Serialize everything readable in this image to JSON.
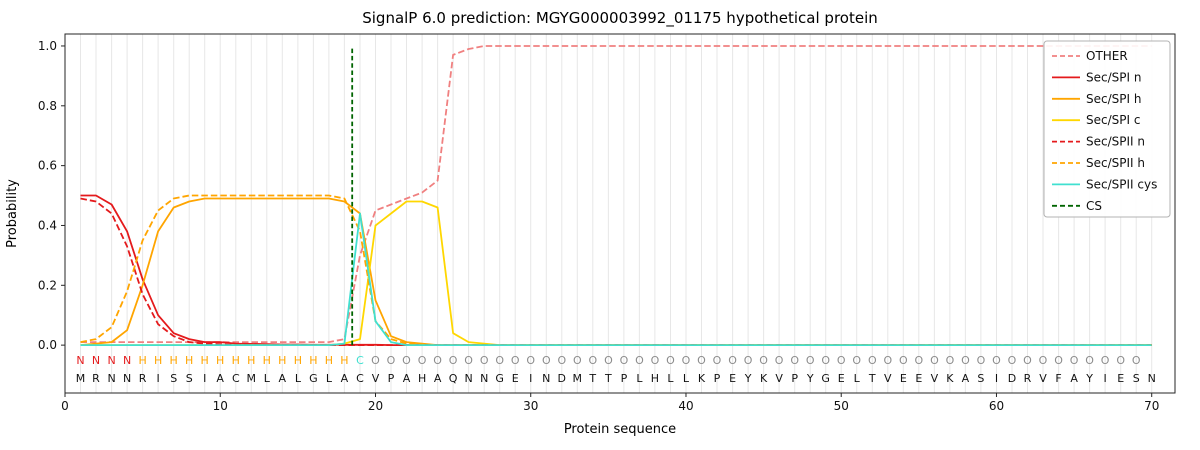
{
  "title": "SignalP 6.0 prediction: MGYG000003992_01175 hypothetical protein",
  "chart_data": {
    "type": "line",
    "title": "SignalP 6.0 prediction: MGYG000003992_01175 hypothetical protein",
    "xlabel": "Protein sequence",
    "ylabel": "Probability",
    "xlim": [
      0,
      71.5
    ],
    "ylim": [
      -0.16,
      1.04
    ],
    "xticks": [
      0,
      10,
      20,
      30,
      40,
      50,
      60,
      70
    ],
    "yticks": [
      0.0,
      0.2,
      0.4,
      0.6,
      0.8,
      1.0
    ],
    "grid": {
      "vertical_per_residue": true,
      "color": "#e7e7e7"
    },
    "legend_position": "upper right",
    "cleavage_site": {
      "label": "CS",
      "x": 18.5,
      "color": "#006400",
      "dash": true
    },
    "sequence": "MRNNRISSIACMLALGLACVPAHAQNNGEINDMTTPLHLLKPEYKVPYGELTVEEVKASIDRVFAYIESN",
    "annotation": "NNNNHHHHHHHHHHHHHHCOOOOOOOOOOOOOOOOOOOOOOOOOOOOOOOOOOOOOOOOOOOOOOOOOO",
    "annotation_colors": {
      "N": "#e41a1c",
      "H": "#ffa500",
      "C": "#40e0d0",
      "O": "#8c8c8c"
    },
    "sequence_color": "#111111",
    "series": [
      {
        "name": "OTHER",
        "color": "#f08080",
        "dash": true,
        "values": [
          0.01,
          0.01,
          0.01,
          0.01,
          0.01,
          0.01,
          0.01,
          0.01,
          0.01,
          0.01,
          0.01,
          0.01,
          0.01,
          0.01,
          0.01,
          0.01,
          0.01,
          0.02,
          0.3,
          0.45,
          0.47,
          0.49,
          0.51,
          0.55,
          0.97,
          0.99,
          1,
          1,
          1,
          1,
          1,
          1,
          1,
          1,
          1,
          1,
          1,
          1,
          1,
          1,
          1,
          1,
          1,
          1,
          1,
          1,
          1,
          1,
          1,
          1,
          1,
          1,
          1,
          1,
          1,
          1,
          1,
          1,
          1,
          1,
          1,
          1,
          1,
          1,
          1,
          1,
          1,
          1,
          1,
          1
        ]
      },
      {
        "name": "Sec/SPI n",
        "color": "#e41a1c",
        "dash": false,
        "values": [
          0.5,
          0.5,
          0.47,
          0.38,
          0.22,
          0.1,
          0.04,
          0.02,
          0.01,
          0.01,
          0.005,
          0.004,
          0.003,
          0.002,
          0.002,
          0.001,
          0.001,
          0.001,
          0.001,
          0.001,
          0,
          0,
          0,
          0,
          0,
          0,
          0,
          0,
          0,
          0,
          0,
          0,
          0,
          0,
          0,
          0,
          0,
          0,
          0,
          0,
          0,
          0,
          0,
          0,
          0,
          0,
          0,
          0,
          0,
          0,
          0,
          0,
          0,
          0,
          0,
          0,
          0,
          0,
          0,
          0,
          0,
          0,
          0,
          0,
          0,
          0,
          0,
          0,
          0,
          0
        ]
      },
      {
        "name": "Sec/SPI h",
        "color": "#ffa500",
        "dash": false,
        "values": [
          0,
          0.005,
          0.01,
          0.05,
          0.2,
          0.38,
          0.46,
          0.48,
          0.49,
          0.49,
          0.49,
          0.49,
          0.49,
          0.49,
          0.49,
          0.49,
          0.49,
          0.48,
          0.44,
          0.15,
          0.03,
          0.01,
          0.005,
          0,
          0,
          0,
          0,
          0,
          0,
          0,
          0,
          0,
          0,
          0,
          0,
          0,
          0,
          0,
          0,
          0,
          0,
          0,
          0,
          0,
          0,
          0,
          0,
          0,
          0,
          0,
          0,
          0,
          0,
          0,
          0,
          0,
          0,
          0,
          0,
          0,
          0,
          0,
          0,
          0,
          0,
          0,
          0,
          0,
          0,
          0
        ]
      },
      {
        "name": "Sec/SPI c",
        "color": "#ffd700",
        "dash": false,
        "values": [
          0,
          0,
          0,
          0,
          0,
          0,
          0,
          0,
          0,
          0,
          0,
          0,
          0,
          0,
          0,
          0,
          0,
          0.005,
          0.02,
          0.4,
          0.44,
          0.48,
          0.48,
          0.46,
          0.04,
          0.01,
          0.005,
          0,
          0,
          0,
          0,
          0,
          0,
          0,
          0,
          0,
          0,
          0,
          0,
          0,
          0,
          0,
          0,
          0,
          0,
          0,
          0,
          0,
          0,
          0,
          0,
          0,
          0,
          0,
          0,
          0,
          0,
          0,
          0,
          0,
          0,
          0,
          0,
          0,
          0,
          0,
          0,
          0,
          0,
          0
        ]
      },
      {
        "name": "Sec/SPII n",
        "color": "#e41a1c",
        "dash": true,
        "values": [
          0.49,
          0.48,
          0.44,
          0.33,
          0.17,
          0.07,
          0.03,
          0.01,
          0.005,
          0.003,
          0,
          0,
          0,
          0,
          0,
          0,
          0,
          0,
          0,
          0,
          0,
          0,
          0,
          0,
          0,
          0,
          0,
          0,
          0,
          0,
          0,
          0,
          0,
          0,
          0,
          0,
          0,
          0,
          0,
          0,
          0,
          0,
          0,
          0,
          0,
          0,
          0,
          0,
          0,
          0,
          0,
          0,
          0,
          0,
          0,
          0,
          0,
          0,
          0,
          0,
          0,
          0,
          0,
          0,
          0,
          0,
          0,
          0,
          0,
          0
        ]
      },
      {
        "name": "Sec/SPII h",
        "color": "#ffa500",
        "dash": true,
        "values": [
          0.01,
          0.02,
          0.06,
          0.18,
          0.35,
          0.45,
          0.49,
          0.5,
          0.5,
          0.5,
          0.5,
          0.5,
          0.5,
          0.5,
          0.5,
          0.5,
          0.5,
          0.49,
          0.38,
          0.08,
          0.02,
          0.005,
          0,
          0,
          0,
          0,
          0,
          0,
          0,
          0,
          0,
          0,
          0,
          0,
          0,
          0,
          0,
          0,
          0,
          0,
          0,
          0,
          0,
          0,
          0,
          0,
          0,
          0,
          0,
          0,
          0,
          0,
          0,
          0,
          0,
          0,
          0,
          0,
          0,
          0,
          0,
          0,
          0,
          0,
          0,
          0,
          0,
          0,
          0,
          0
        ]
      },
      {
        "name": "Sec/SPII cys",
        "color": "#40e0d0",
        "dash": false,
        "values": [
          0,
          0,
          0,
          0,
          0,
          0,
          0,
          0,
          0,
          0,
          0,
          0,
          0,
          0,
          0,
          0,
          0,
          0.005,
          0.44,
          0.08,
          0.01,
          0,
          0,
          0,
          0,
          0,
          0,
          0,
          0,
          0,
          0,
          0,
          0,
          0,
          0,
          0,
          0,
          0,
          0,
          0,
          0,
          0,
          0,
          0,
          0,
          0,
          0,
          0,
          0,
          0,
          0,
          0,
          0,
          0,
          0,
          0,
          0,
          0,
          0,
          0,
          0,
          0,
          0,
          0,
          0,
          0,
          0,
          0,
          0,
          0
        ]
      }
    ]
  }
}
